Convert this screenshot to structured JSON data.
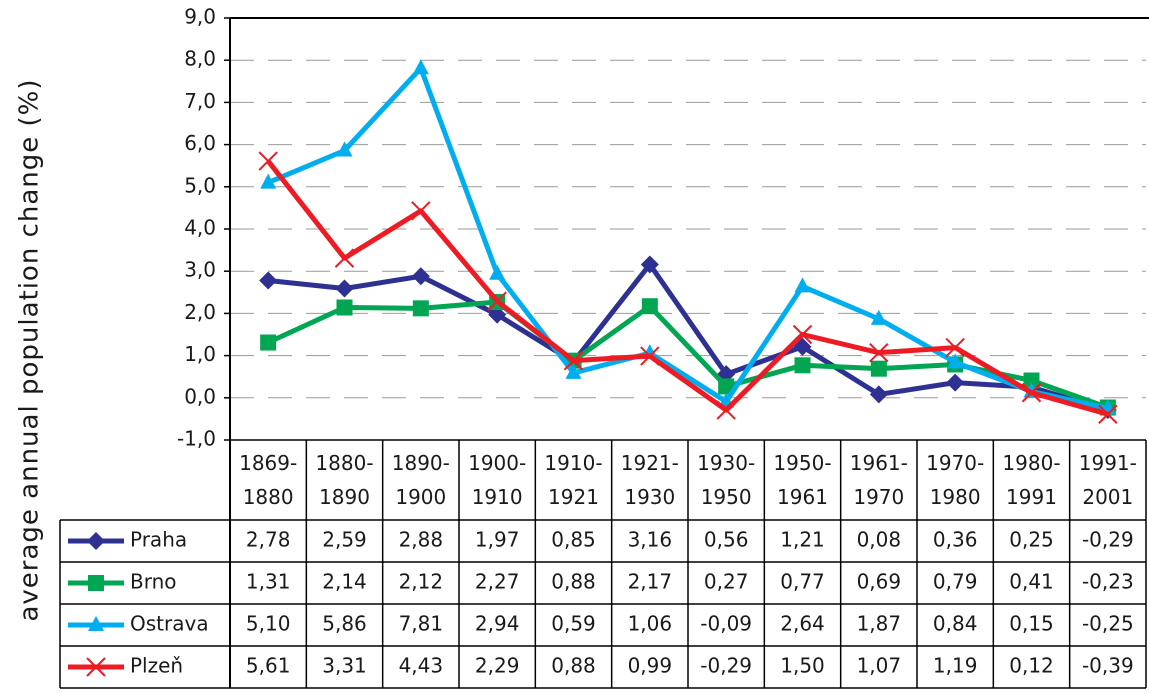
{
  "chart_data": {
    "type": "line",
    "y_label": "average annual population change (%)",
    "categories": [
      "1869-1880",
      "1880-1890",
      "1890-1900",
      "1900-1910",
      "1910-1921",
      "1921-1930",
      "1930-1950",
      "1950-1961",
      "1961-1970",
      "1970-1980",
      "1980-1991",
      "1991-2001"
    ],
    "series": [
      {
        "name": "Praha",
        "color": "#2e3192",
        "marker": "diamond",
        "values": [
          2.78,
          2.59,
          2.88,
          1.97,
          0.85,
          3.16,
          0.56,
          1.21,
          0.08,
          0.36,
          0.25,
          -0.29
        ],
        "value_labels": [
          "2,78",
          "2,59",
          "2,88",
          "1,97",
          "0,85",
          "3,16",
          "0,56",
          "1,21",
          "0,08",
          "0,36",
          "0,25",
          "-0,29"
        ]
      },
      {
        "name": "Brno",
        "color": "#00a651",
        "marker": "square",
        "values": [
          1.31,
          2.14,
          2.12,
          2.27,
          0.88,
          2.17,
          0.27,
          0.77,
          0.69,
          0.79,
          0.41,
          -0.23
        ],
        "value_labels": [
          "1,31",
          "2,14",
          "2,12",
          "2,27",
          "0,88",
          "2,17",
          "0,27",
          "0,77",
          "0,69",
          "0,79",
          "0,41",
          "-0,23"
        ]
      },
      {
        "name": "Ostrava",
        "color": "#00aeef",
        "marker": "triangle",
        "values": [
          5.1,
          5.86,
          7.81,
          2.94,
          0.59,
          1.06,
          -0.09,
          2.64,
          1.87,
          0.84,
          0.15,
          -0.25
        ],
        "value_labels": [
          "5,10",
          "5,86",
          "7,81",
          "2,94",
          "0,59",
          "1,06",
          "-0,09",
          "2,64",
          "1,87",
          "0,84",
          "0,15",
          "-0,25"
        ]
      },
      {
        "name": "Plzeň",
        "color": "#ed1c24",
        "marker": "x",
        "values": [
          5.61,
          3.31,
          4.43,
          2.29,
          0.88,
          0.99,
          -0.29,
          1.5,
          1.07,
          1.19,
          0.12,
          -0.39
        ],
        "value_labels": [
          "5,61",
          "3,31",
          "4,43",
          "2,29",
          "0,88",
          "0,99",
          "-0,29",
          "1,50",
          "1,07",
          "1,19",
          "0,12",
          "-0,39"
        ]
      }
    ],
    "ylim": [
      -1,
      9
    ],
    "yticks": [
      {
        "value": -1,
        "label": "-1,0"
      },
      {
        "value": 0,
        "label": "0,0"
      },
      {
        "value": 1,
        "label": "1,0"
      },
      {
        "value": 2,
        "label": "2,0"
      },
      {
        "value": 3,
        "label": "3,0"
      },
      {
        "value": 4,
        "label": "4,0"
      },
      {
        "value": 5,
        "label": "5,0"
      },
      {
        "value": 6,
        "label": "6,0"
      },
      {
        "value": 7,
        "label": "7,0"
      },
      {
        "value": 8,
        "label": "8,0"
      },
      {
        "value": 9,
        "label": "9,0"
      }
    ],
    "grid": true
  }
}
